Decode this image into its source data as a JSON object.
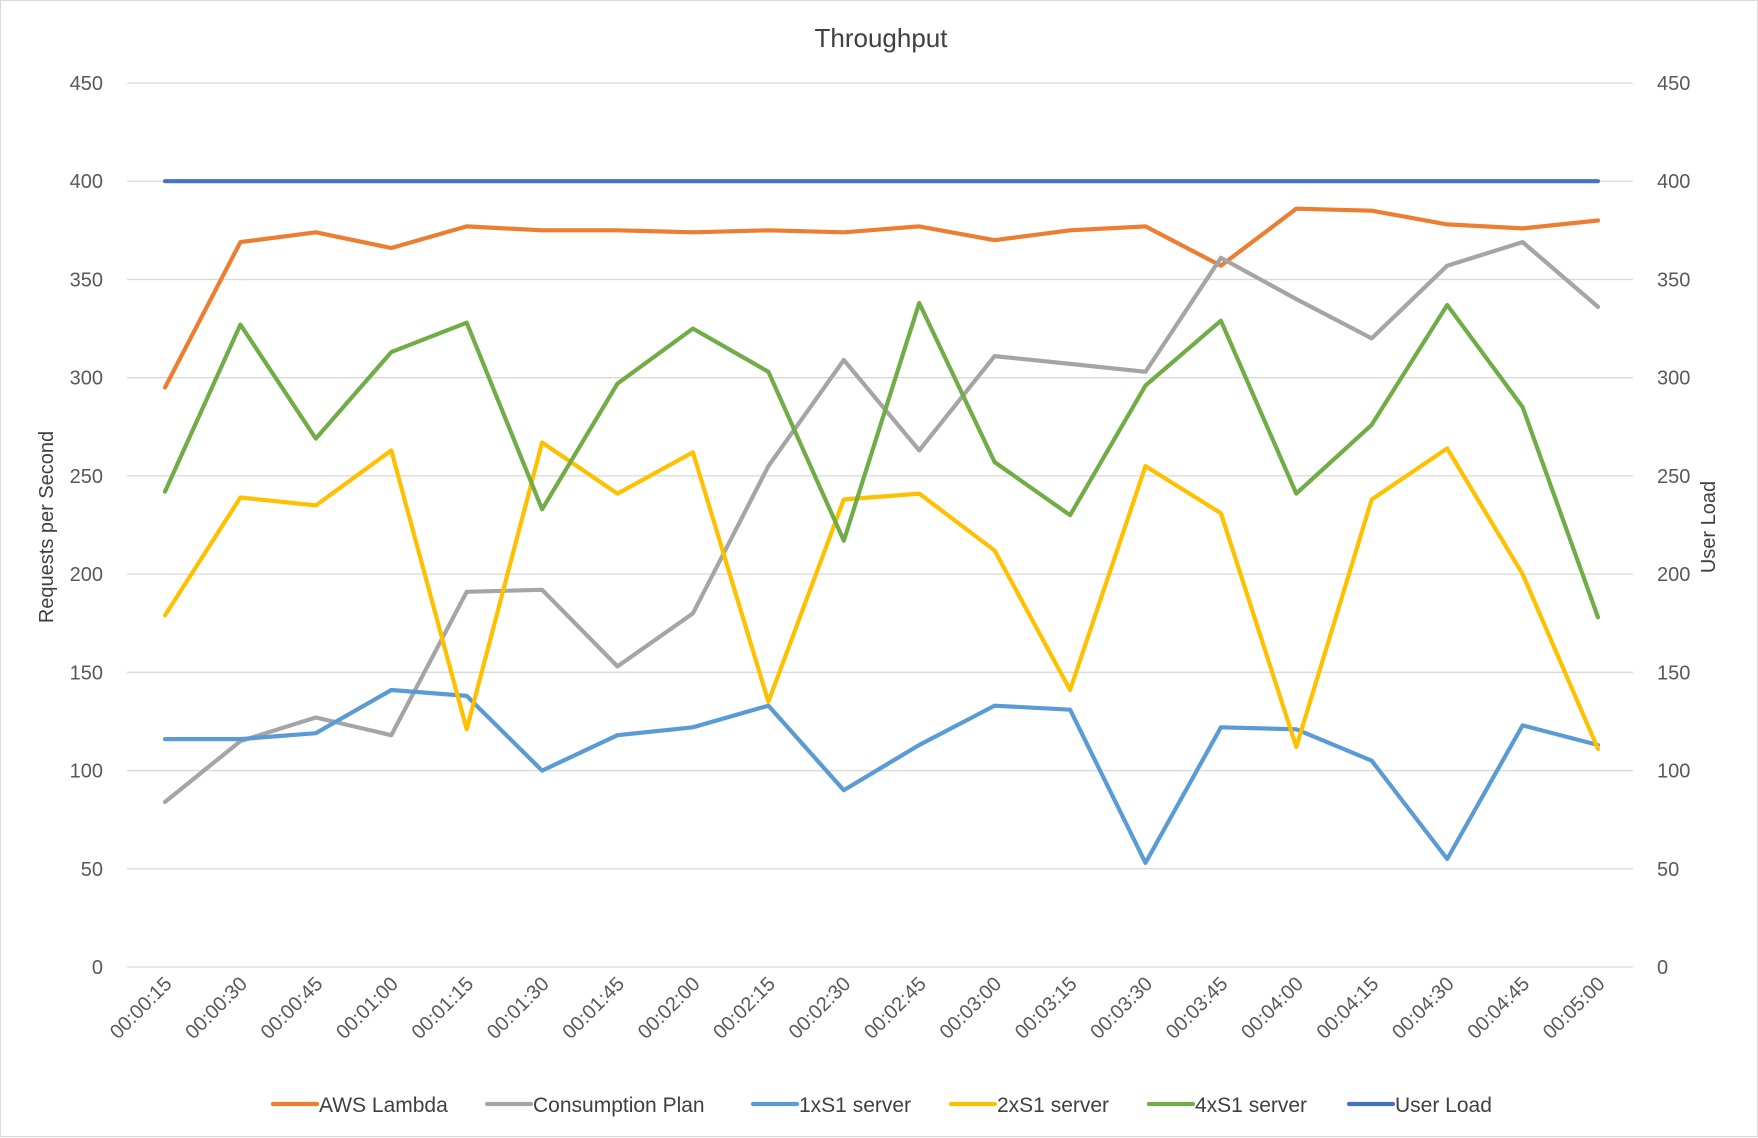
{
  "chart_data": {
    "type": "line",
    "title": "Throughput",
    "ylabel": "Requests per Second",
    "y2label": "User Load",
    "ylim": [
      0,
      450
    ],
    "y2lim": [
      0,
      450
    ],
    "yticks": [
      "0",
      "50",
      "100",
      "150",
      "200",
      "250",
      "300",
      "350",
      "400",
      "450"
    ],
    "y2ticks": [
      "0",
      "50",
      "100",
      "150",
      "200",
      "250",
      "300",
      "350",
      "400",
      "450"
    ],
    "grid": true,
    "legend": "bottom",
    "categories": [
      "00:00:15",
      "00:00:30",
      "00:00:45",
      "00:01:00",
      "00:01:15",
      "00:01:30",
      "00:01:45",
      "00:02:00",
      "00:02:15",
      "00:02:30",
      "00:02:45",
      "00:03:00",
      "00:03:15",
      "00:03:30",
      "00:03:45",
      "00:04:00",
      "00:04:15",
      "00:04:30",
      "00:04:45",
      "00:05:00"
    ],
    "series": [
      {
        "name": "AWS Lambda",
        "color": "#ED7D31",
        "axis": "left",
        "values": [
          295,
          369,
          374,
          366,
          377,
          375,
          375,
          374,
          375,
          374,
          377,
          370,
          375,
          377,
          357,
          386,
          385,
          378,
          376,
          380
        ]
      },
      {
        "name": "Consumption Plan",
        "color": "#A5A5A5",
        "axis": "left",
        "values": [
          84,
          115,
          127,
          118,
          191,
          192,
          153,
          180,
          255,
          309,
          263,
          311,
          307,
          303,
          361,
          340,
          320,
          357,
          369,
          336
        ]
      },
      {
        "name": "1xS1 server",
        "color": "#5B9BD5",
        "axis": "left",
        "values": [
          116,
          116,
          119,
          141,
          138,
          100,
          118,
          122,
          133,
          90,
          113,
          133,
          131,
          53,
          122,
          121,
          105,
          55,
          123,
          113
        ]
      },
      {
        "name": "2xS1 server",
        "color": "#FFC000",
        "axis": "left",
        "values": [
          179,
          239,
          235,
          263,
          121,
          267,
          241,
          262,
          135,
          238,
          241,
          212,
          141,
          255,
          231,
          112,
          238,
          264,
          200,
          111
        ]
      },
      {
        "name": "4xS1 server",
        "color": "#70AD47",
        "axis": "left",
        "values": [
          242,
          327,
          269,
          313,
          328,
          233,
          297,
          325,
          303,
          217,
          338,
          257,
          230,
          296,
          329,
          241,
          276,
          337,
          285,
          178
        ]
      },
      {
        "name": "User Load",
        "color": "#4472C4",
        "axis": "right",
        "values": [
          400,
          400,
          400,
          400,
          400,
          400,
          400,
          400,
          400,
          400,
          400,
          400,
          400,
          400,
          400,
          400,
          400,
          400,
          400,
          400
        ]
      }
    ]
  }
}
